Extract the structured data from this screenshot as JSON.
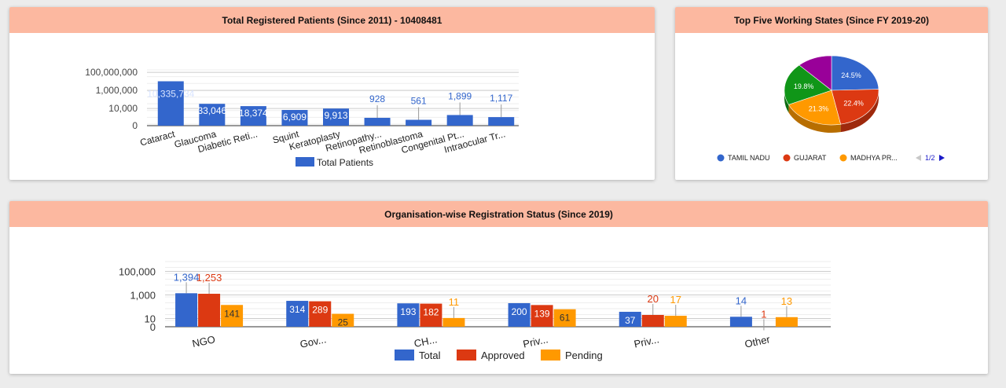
{
  "cards": {
    "patients": {
      "title": "Total Registered Patients (Since 2011) - 10408481"
    },
    "states": {
      "title": "Top Five Working States (Since FY 2019-20)",
      "pager": "1/2"
    },
    "organisation": {
      "title": "Organisation-wise Registration Status (Since 2019)"
    }
  },
  "chart_data": [
    {
      "type": "bar",
      "scale": "log",
      "categories": [
        "Cataract",
        "Glaucoma",
        "Diabetic Reti...",
        "Squint",
        "Keratoplasty",
        "Retinopathy...",
        "Retinoblastoma",
        "Congenital Pt...",
        "Intraocular Tr..."
      ],
      "series": [
        {
          "name": "Total Patients",
          "color": "#3366cc",
          "values": [
            10335734,
            33046,
            18374,
            6909,
            9913,
            928,
            561,
            1899,
            1117
          ]
        }
      ],
      "data_labels": [
        "10,335,734",
        "33,046",
        "18,374",
        "6,909",
        "9,913",
        "928",
        "561",
        "1,899",
        "1,117"
      ],
      "y_ticks": [
        "100,000,000",
        "1,000,000",
        "10,000",
        "0"
      ],
      "y_tick_values": [
        100000000,
        1000000,
        10000,
        0
      ],
      "legend_position": "bottom"
    },
    {
      "type": "pie",
      "style": "3d",
      "categories": [
        "TAMIL NADU",
        "GUJARAT",
        "MADHYA PR...",
        "",
        ""
      ],
      "values": [
        24.5,
        22.4,
        21.3,
        19.8,
        12.0
      ],
      "slice_labels": [
        "24.5%",
        "22.4%",
        "21.3%",
        "19.8%",
        ""
      ],
      "colors": [
        "#3366cc",
        "#dc3912",
        "#ff9900",
        "#109618",
        "#990099"
      ],
      "legend_position": "bottom"
    },
    {
      "type": "bar",
      "scale": "log",
      "categories": [
        "NGO",
        "Gov...",
        "CH...",
        "Priv...",
        "Priv...",
        "Other"
      ],
      "series": [
        {
          "name": "Total",
          "color": "#3366cc",
          "values": [
            1394,
            314,
            193,
            200,
            37,
            14
          ]
        },
        {
          "name": "Approved",
          "color": "#dc3912",
          "values": [
            1253,
            289,
            182,
            139,
            20,
            1
          ]
        },
        {
          "name": "Pending",
          "color": "#ff9900",
          "values": [
            141,
            25,
            11,
            61,
            17,
            13
          ]
        }
      ],
      "data_labels": [
        [
          "1,394",
          "314",
          "193",
          "200",
          "37",
          "14"
        ],
        [
          "1,253",
          "289",
          "182",
          "139",
          "20",
          "1"
        ],
        [
          "141",
          "25",
          "11",
          "61",
          "17",
          "13"
        ]
      ],
      "y_ticks": [
        "100,000",
        "1,000",
        "10",
        "0"
      ],
      "y_tick_values": [
        100000,
        1000,
        10,
        0
      ],
      "legend_position": "bottom"
    }
  ]
}
